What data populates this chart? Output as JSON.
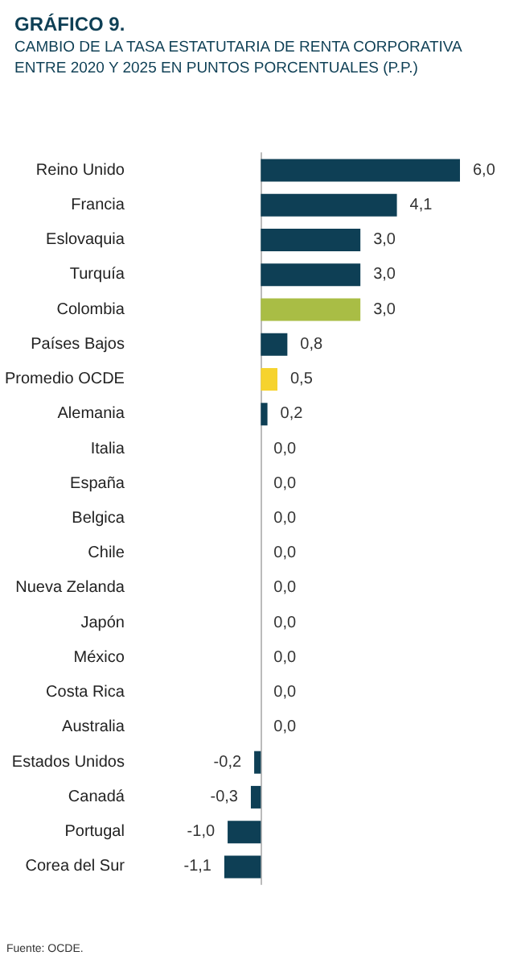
{
  "chart_data": {
    "type": "bar",
    "orientation": "horizontal",
    "title": "GRÁFICO 9.",
    "subtitle": "CAMBIO DE LA TASA ESTATUTARIA DE RENTA CORPORATIVA ENTRE 2020 Y 2025 EN PUNTOS PORCENTUALES (P.P.)",
    "categories": [
      "Reino Unido",
      "Francia",
      "Eslovaquia",
      "Turquía",
      "Colombia",
      "Países Bajos",
      "Promedio OCDE",
      "Alemania",
      "Italia",
      "España",
      "Belgica",
      "Chile",
      "Nueva Zelanda",
      "Japón",
      "México",
      "Costa Rica",
      "Australia",
      "Estados Unidos",
      "Canadá",
      "Portugal",
      "Corea del Sur"
    ],
    "values": [
      6.0,
      4.1,
      3.0,
      3.0,
      3.0,
      0.8,
      0.5,
      0.2,
      0.0,
      0.0,
      0.0,
      0.0,
      0.0,
      0.0,
      0.0,
      0.0,
      0.0,
      -0.2,
      -0.3,
      -1.0,
      -1.1
    ],
    "value_labels": [
      "6,0",
      "4,1",
      "3,0",
      "3,0",
      "3,0",
      "0,8",
      "0,5",
      "0,2",
      "0,0",
      "0,0",
      "0,0",
      "0,0",
      "0,0",
      "0,0",
      "0,0",
      "0,0",
      "0,0",
      "-0,2",
      "-0,3",
      "-1,0",
      "-1,1"
    ],
    "colors": [
      "#0e3f55",
      "#0e3f55",
      "#0e3f55",
      "#0e3f55",
      "#a9bd45",
      "#0e3f55",
      "#f6d32d",
      "#0e3f55",
      "#0e3f55",
      "#0e3f55",
      "#0e3f55",
      "#0e3f55",
      "#0e3f55",
      "#0e3f55",
      "#0e3f55",
      "#0e3f55",
      "#0e3f55",
      "#0e3f55",
      "#0e3f55",
      "#0e3f55",
      "#0e3f55"
    ],
    "annotations": [
      "Fuente: OCDE."
    ]
  }
}
